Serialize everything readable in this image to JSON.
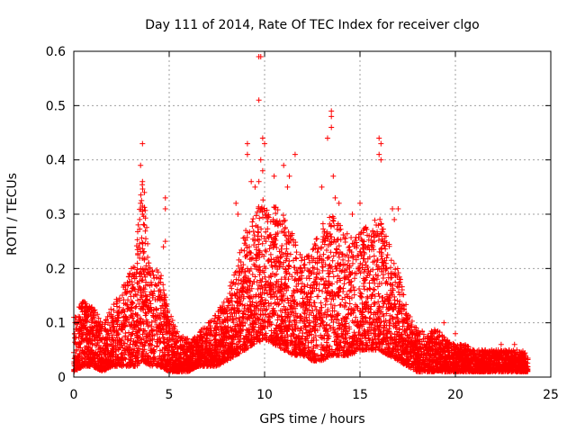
{
  "chart_data": {
    "type": "scatter",
    "title": "Day 111 of 2014, Rate Of TEC Index for receiver clgo",
    "xlabel": "GPS time / hours",
    "ylabel": "ROTI / TECUs",
    "xlim": [
      0,
      25
    ],
    "ylim": [
      0,
      0.6
    ],
    "x_ticks": [
      0,
      5,
      10,
      15,
      20,
      25
    ],
    "y_ticks": [
      0,
      0.1,
      0.2,
      0.3,
      0.4,
      0.5,
      0.6
    ],
    "grid": true,
    "marker": "+",
    "color": "#ff0000",
    "x_range_of_data": [
      0,
      23.8
    ],
    "envelope": {
      "description": "upper/lower bounds of dense point cloud (hours, TECU)",
      "hours": [
        0,
        0.5,
        1,
        1.5,
        2,
        2.5,
        3,
        3.3,
        3.6,
        4,
        4.5,
        5,
        5.5,
        6,
        6.5,
        7,
        7.5,
        8,
        8.5,
        9,
        9.5,
        10,
        10.5,
        11,
        11.5,
        12,
        12.5,
        13,
        13.5,
        14,
        14.5,
        15,
        15.5,
        16,
        16.5,
        17,
        17.5,
        18,
        18.5,
        19,
        19.5,
        20,
        20.5,
        21,
        21.5,
        22,
        22.5,
        23,
        23.5,
        23.8
      ],
      "upper": [
        0.12,
        0.14,
        0.13,
        0.1,
        0.13,
        0.16,
        0.2,
        0.25,
        0.38,
        0.2,
        0.2,
        0.12,
        0.08,
        0.07,
        0.08,
        0.1,
        0.12,
        0.15,
        0.2,
        0.28,
        0.3,
        0.34,
        0.32,
        0.3,
        0.26,
        0.22,
        0.24,
        0.28,
        0.3,
        0.28,
        0.26,
        0.27,
        0.28,
        0.3,
        0.25,
        0.2,
        0.12,
        0.09,
        0.08,
        0.09,
        0.07,
        0.06,
        0.06,
        0.05,
        0.05,
        0.05,
        0.05,
        0.05,
        0.05,
        0.04
      ],
      "lower": [
        0.01,
        0.02,
        0.02,
        0.01,
        0.02,
        0.02,
        0.02,
        0.02,
        0.03,
        0.02,
        0.02,
        0.01,
        0.01,
        0.01,
        0.02,
        0.02,
        0.02,
        0.03,
        0.04,
        0.05,
        0.06,
        0.07,
        0.06,
        0.05,
        0.04,
        0.04,
        0.03,
        0.03,
        0.04,
        0.04,
        0.04,
        0.05,
        0.05,
        0.05,
        0.04,
        0.03,
        0.02,
        0.01,
        0.01,
        0.01,
        0.01,
        0.01,
        0.01,
        0.01,
        0.01,
        0.01,
        0.01,
        0.01,
        0.01,
        0.01
      ]
    },
    "outliers": [
      [
        3.6,
        0.43
      ],
      [
        3.5,
        0.39
      ],
      [
        3.6,
        0.36
      ],
      [
        3.7,
        0.34
      ],
      [
        3.5,
        0.32
      ],
      [
        3.6,
        0.3
      ],
      [
        3.7,
        0.28
      ],
      [
        4.8,
        0.33
      ],
      [
        4.8,
        0.31
      ],
      [
        4.8,
        0.25
      ],
      [
        4.7,
        0.24
      ],
      [
        8.5,
        0.32
      ],
      [
        8.6,
        0.3
      ],
      [
        9.1,
        0.43
      ],
      [
        9.1,
        0.41
      ],
      [
        9.3,
        0.36
      ],
      [
        9.5,
        0.35
      ],
      [
        9.7,
        0.59
      ],
      [
        9.8,
        0.59
      ],
      [
        9.7,
        0.51
      ],
      [
        9.9,
        0.44
      ],
      [
        10.0,
        0.43
      ],
      [
        9.8,
        0.4
      ],
      [
        9.9,
        0.38
      ],
      [
        9.7,
        0.36
      ],
      [
        10.5,
        0.37
      ],
      [
        11.0,
        0.39
      ],
      [
        11.3,
        0.37
      ],
      [
        11.6,
        0.41
      ],
      [
        11.2,
        0.35
      ],
      [
        13.0,
        0.35
      ],
      [
        13.5,
        0.49
      ],
      [
        13.5,
        0.48
      ],
      [
        13.5,
        0.46
      ],
      [
        13.3,
        0.44
      ],
      [
        13.6,
        0.37
      ],
      [
        13.7,
        0.33
      ],
      [
        13.9,
        0.32
      ],
      [
        15.0,
        0.32
      ],
      [
        14.6,
        0.3
      ],
      [
        16.0,
        0.44
      ],
      [
        16.1,
        0.43
      ],
      [
        16.0,
        0.41
      ],
      [
        16.1,
        0.4
      ],
      [
        16.7,
        0.31
      ],
      [
        16.8,
        0.29
      ],
      [
        17.0,
        0.31
      ],
      [
        19.4,
        0.1
      ],
      [
        20.0,
        0.08
      ],
      [
        21.9,
        0.05
      ],
      [
        22.4,
        0.06
      ],
      [
        23.1,
        0.06
      ]
    ]
  }
}
